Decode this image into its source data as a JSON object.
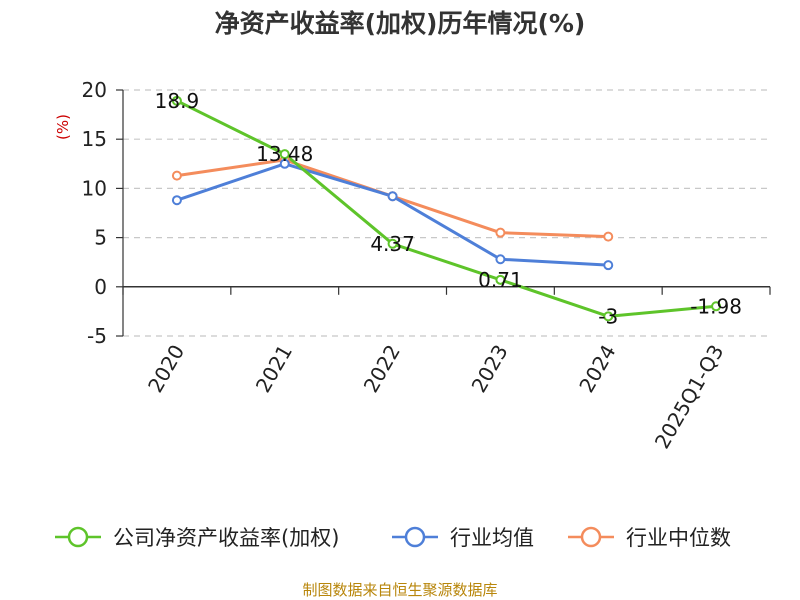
{
  "chart_data": {
    "type": "line",
    "title": "净资产收益率(加权)历年情况(%)",
    "ylabel": "(%)",
    "xlabel": "",
    "categories": [
      "2020",
      "2021",
      "2022",
      "2023",
      "2024",
      "2025Q1-Q3"
    ],
    "ylim": [
      -5,
      20
    ],
    "yticks": [
      20,
      15,
      10,
      5,
      0,
      -5
    ],
    "grid": true,
    "legend_position": "bottom",
    "series": [
      {
        "name": "公司净资产收益率(加权)",
        "color": "#5ec42a",
        "values": [
          18.9,
          13.48,
          4.37,
          0.71,
          -3,
          -1.98
        ],
        "labels": [
          "18.9",
          "13.48",
          "4.37",
          "0.71",
          "-3",
          "-1.98"
        ]
      },
      {
        "name": "行业均值",
        "color": "#4e7fd8",
        "values": [
          8.8,
          12.5,
          9.2,
          2.8,
          2.2,
          null
        ]
      },
      {
        "name": "行业中位数",
        "color": "#f48c5c",
        "values": [
          11.3,
          12.9,
          9.2,
          5.5,
          5.1,
          null
        ]
      }
    ],
    "source": "制图数据来自恒生聚源数据库",
    "ylabel_color": "#cc0000",
    "source_color": "#b8860b"
  }
}
